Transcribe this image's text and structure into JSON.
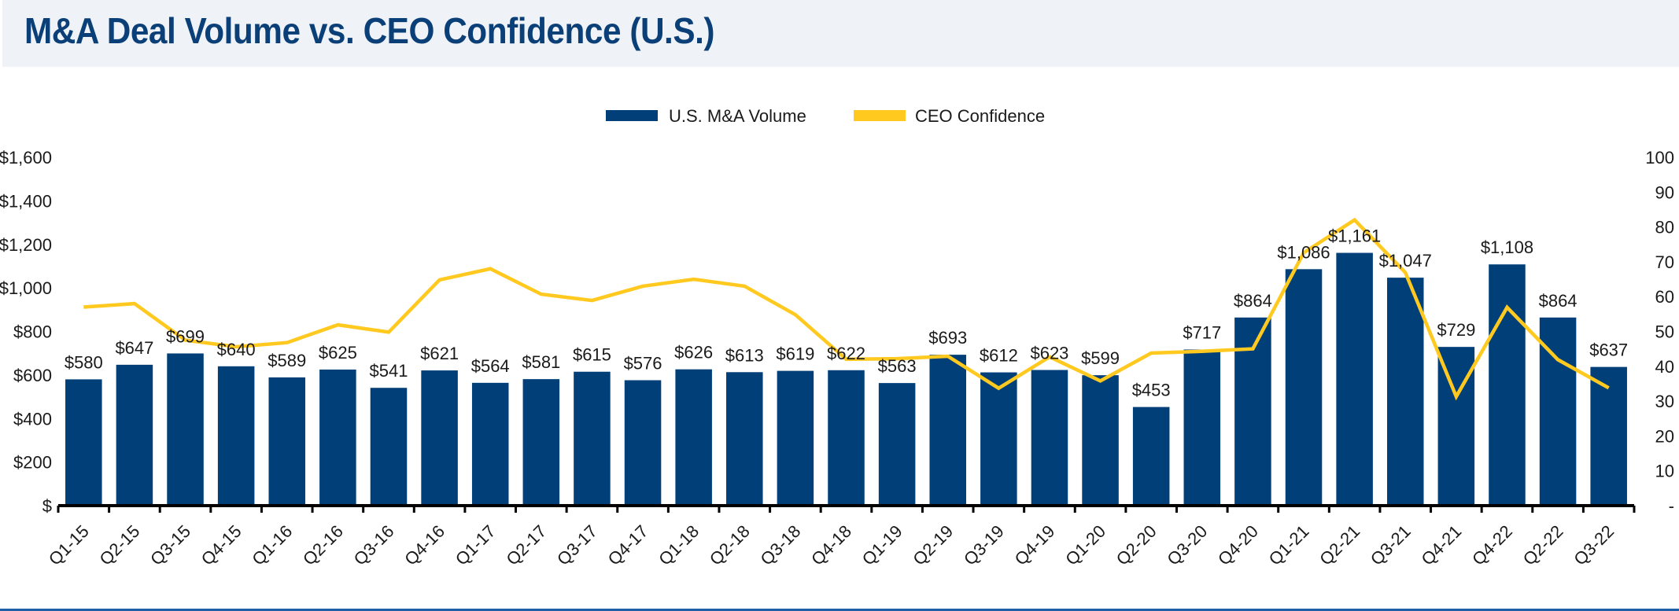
{
  "header": {
    "title": "M&A Deal Volume vs. CEO Confidence (U.S.)"
  },
  "colors": {
    "bars": "#003f78",
    "line": "#ffc91f",
    "title": "#0b3f78",
    "header_bg": "#eff3f7",
    "rule": "#1f5fa8"
  },
  "chart_data": {
    "type": "bar+line",
    "title": "M&A Deal Volume vs. CEO Confidence (U.S.)",
    "legend_position": "top-center",
    "grid": false,
    "categories": [
      "Q1-15",
      "Q2-15",
      "Q3-15",
      "Q4-15",
      "Q1-16",
      "Q2-16",
      "Q3-16",
      "Q4-16",
      "Q1-17",
      "Q2-17",
      "Q3-17",
      "Q4-17",
      "Q1-18",
      "Q2-18",
      "Q3-18",
      "Q4-18",
      "Q1-19",
      "Q2-19",
      "Q3-19",
      "Q4-19",
      "Q1-20",
      "Q2-20",
      "Q3-20",
      "Q4-20",
      "Q1-21",
      "Q2-21",
      "Q3-21",
      "Q4-21",
      "Q4-22",
      "Q2-22",
      "Q3-22"
    ],
    "series": [
      {
        "name": "U.S. M&A Volume",
        "type": "bar",
        "axis": "left",
        "values": [
          580,
          647,
          699,
          640,
          589,
          625,
          541,
          621,
          564,
          581,
          615,
          576,
          626,
          613,
          619,
          622,
          563,
          693,
          612,
          623,
          599,
          453,
          717,
          864,
          1086,
          1161,
          1047,
          729,
          1108,
          864,
          637
        ],
        "labels": [
          "$580",
          "$647",
          "$699",
          "$640",
          "$589",
          "$625",
          "$541",
          "$621",
          "$564",
          "$581",
          "$615",
          "$576",
          "$626",
          "$613",
          "$619",
          "$622",
          "$563",
          "$693",
          "$612",
          "$623",
          "$599",
          "$453",
          "$717",
          "$864",
          "$1,086",
          "$1,161",
          "$1,047",
          "$729",
          "$1,108",
          "$864",
          "$637"
        ]
      },
      {
        "name": "CEO Confidence",
        "type": "line",
        "axis": "right",
        "values": [
          57,
          58,
          47.5,
          45.6,
          46.8,
          51.9,
          49.8,
          64.8,
          68,
          60.7,
          58.9,
          63,
          65,
          63,
          54.8,
          42,
          42.2,
          42.9,
          33.7,
          42.7,
          35.8,
          43.8,
          44.3,
          45,
          72.6,
          82,
          66.9,
          31.3,
          56.9,
          41.9,
          33.8
        ]
      }
    ],
    "y_left": {
      "range": [
        0,
        1600
      ],
      "ticks": [
        "$",
        "$200",
        "$400",
        "$600",
        "$800",
        "$1,000",
        "$1,200",
        "$1,400",
        "$1,600"
      ]
    },
    "y_right": {
      "range": [
        0,
        100
      ],
      "ticks": [
        "-",
        "10",
        "20",
        "30",
        "40",
        "50",
        "60",
        "70",
        "80",
        "90",
        "100"
      ]
    }
  }
}
